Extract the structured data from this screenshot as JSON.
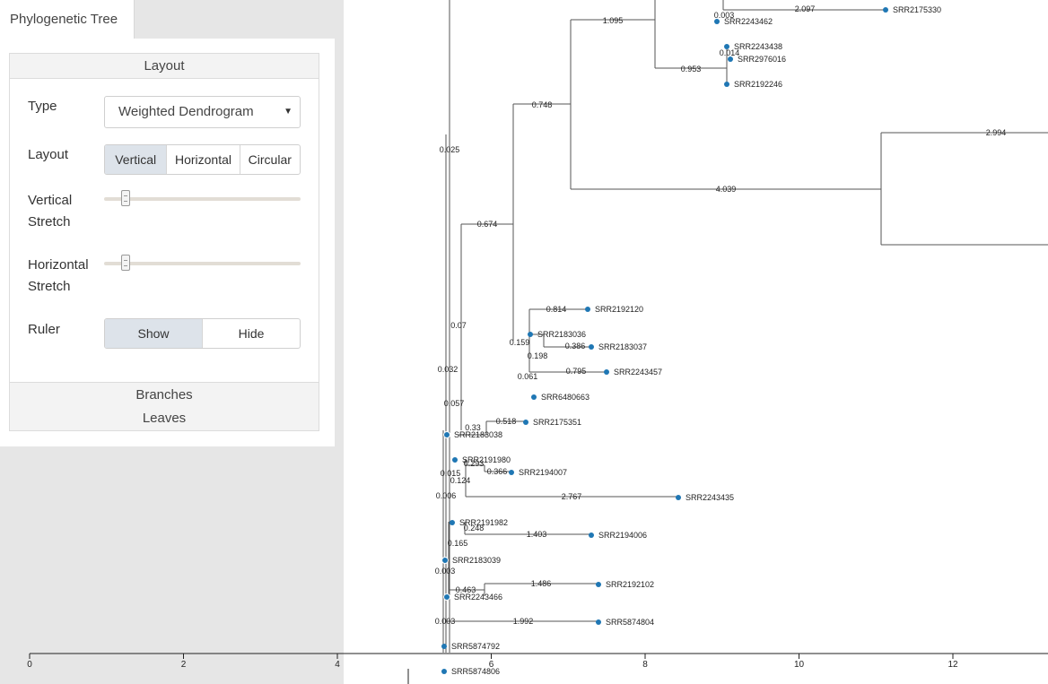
{
  "tab": {
    "label": "Phylogenetic Tree"
  },
  "panel": {
    "layout_header": "Layout",
    "type_label": "Type",
    "type_value": "Weighted Dendrogram",
    "layout_label": "Layout",
    "layout_options": [
      "Vertical",
      "Horizontal",
      "Circular"
    ],
    "layout_selected": "Vertical",
    "vstretch_label_1": "Vertical",
    "vstretch_label_2": "Stretch",
    "vstretch_value": 0.1,
    "hstretch_label_1": "Horizontal",
    "hstretch_label_2": "Stretch",
    "hstretch_value": 0.1,
    "ruler_label": "Ruler",
    "ruler_options": [
      "Show",
      "Hide"
    ],
    "ruler_selected": "Show",
    "branches_header": "Branches",
    "leaves_header": "Leaves"
  },
  "colors": {
    "node": "#1f77b4",
    "branch": "#555555",
    "panel_bg": "#e6e6e6",
    "active_seg": "#dde3ea"
  },
  "ruler": {
    "ticks": [
      "0",
      "2",
      "4",
      "6",
      "8",
      "10",
      "12"
    ]
  },
  "tree": {
    "leaves": [
      "SRR2175330",
      "SRR2243462",
      "SRR2243438",
      "SRR2976016",
      "SRR2192246",
      "SRR2192120",
      "SRR2183036",
      "SRR2183037",
      "SRR2243457",
      "SRR6480663",
      "SRR2175351",
      "SRR2183038",
      "SRR2191980",
      "SRR2194007",
      "SRR2243435",
      "SRR2191982",
      "SRR2194006",
      "SRR2183039",
      "SRR2192102",
      "SRR2243466",
      "SRR5874804",
      "SRR5874792",
      "SRR5874806"
    ],
    "branch_labels": [
      "1.095",
      "0.003",
      "2.097",
      "0.953",
      "0.014",
      "0.748",
      "2.994",
      "4.039",
      "0.025",
      "0.674",
      "0.814",
      "0.159",
      "0.198",
      "0.386",
      "0.061",
      "0.795",
      "0.07",
      "0.032",
      "0.057",
      "0.33",
      "0.518",
      "0.293",
      "0.366",
      "0.015",
      "0.124",
      "0.006",
      "2.767",
      "0.248",
      "1.403",
      "0.165",
      "0.003",
      "0.463",
      "1.486",
      "0.003",
      "1.992"
    ]
  }
}
